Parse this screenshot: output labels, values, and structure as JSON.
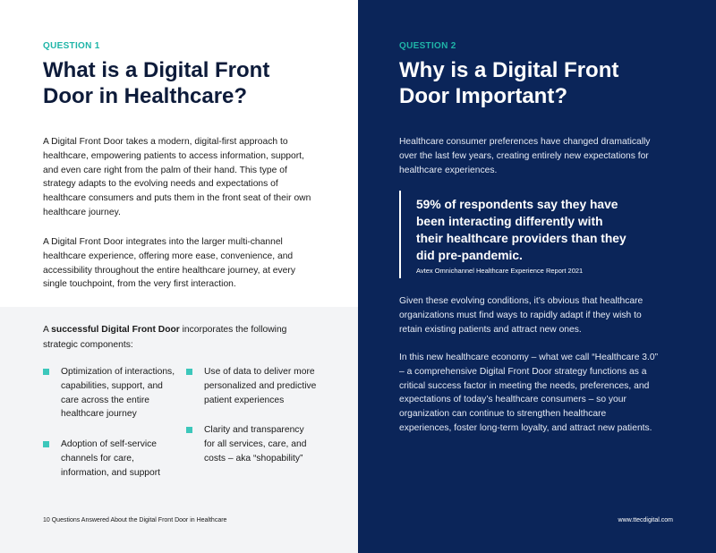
{
  "left": {
    "label": "QUESTION 1",
    "title": "What is a Digital Front Door in Healthcare?",
    "paragraphs": [
      "A Digital Front Door takes a modern, digital-first approach to healthcare, empowering patients to access information, support, and even care right from the palm of their hand. This type of strategy adapts to the evolving needs and expectations of healthcare consumers and puts them in the front seat of their own healthcare journey.",
      "A Digital Front Door integrates into the larger multi-channel healthcare experience, offering more ease, convenience, and accessibility throughout the entire healthcare journey, at every single touchpoint, from the very first interaction."
    ],
    "intro": [
      "A ",
      "successful Digital Front Door",
      " incorporates the following strategic components:"
    ],
    "components": [
      [
        "Optimization of interactions, capabilities, support, and care across the entire healthcare journey",
        "Adoption of self-service channels for care, information, and support"
      ],
      [
        "Use of data to deliver more personalized and predictive patient experiences",
        "Clarity and transparency for all services, care, and costs – aka “shopability”"
      ]
    ]
  },
  "right": {
    "label": "QUESTION 2",
    "title": "Why is a Digital Front Door Important?",
    "paragraph": "Healthcare consumer preferences have changed dramatically over the last few years, creating entirely new expectations for healthcare experiences.",
    "quote": "59% of respondents say they have been interacting differently with their healthcare providers than they did pre-pandemic.",
    "source": "Avtex Omnichannel Healthcare Experience Report 2021",
    "paragraphs": [
      "Given these evolving conditions, it’s obvious that healthcare organizations must find ways to rapidly adapt if they wish to retain existing patients and attract new ones.",
      "In this new healthcare economy – what we call “Healthcare 3.0” – a comprehensive Digital Front Door strategy functions as a critical success factor in meeting the needs, preferences, and expectations of today’s healthcare consumers – so your organization can continue to strengthen healthcare experiences, foster long-term loyalty, and attract new patients."
    ]
  },
  "footer": {
    "left": "10 Questions Answered About the Digital Front Door in Healthcare",
    "right": "www.ttecdigital.com"
  }
}
